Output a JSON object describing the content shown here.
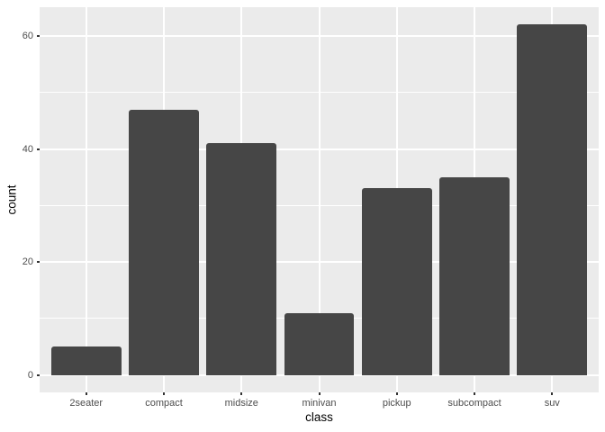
{
  "chart_data": {
    "type": "bar",
    "title": "",
    "xlabel": "class",
    "ylabel": "count",
    "categories": [
      "2seater",
      "compact",
      "midsize",
      "minivan",
      "pickup",
      "subcompact",
      "suv"
    ],
    "values": [
      5,
      47,
      41,
      11,
      33,
      35,
      62
    ],
    "ylim": [
      0,
      62
    ],
    "y_major_ticks": [
      0,
      20,
      40,
      60
    ],
    "y_minor_ticks": [
      10,
      30,
      50
    ],
    "grid": "white major horizontal at y ticks, white minor horizontal between, white vertical at category centers, no legend",
    "legend": "none",
    "style": {
      "page_bg": "#FFFFFF",
      "panel_bg": "#EBEBEB",
      "grid_color": "#FFFFFF",
      "bar_fill": "#464646",
      "tick_label_color": "#4D4D4D",
      "axis_title_color": "#000000",
      "tick_mark_color": "#333333"
    }
  }
}
